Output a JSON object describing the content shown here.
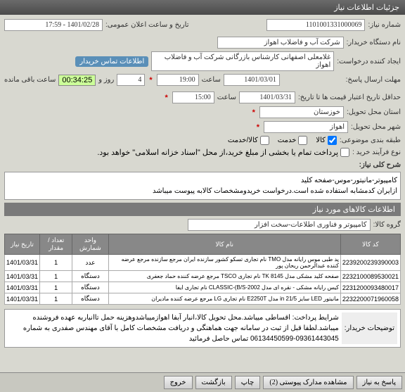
{
  "window": {
    "title": "جزئیات اطلاعات نیاز"
  },
  "header": {
    "num_label": "شماره نیاز:",
    "num_value": "1101001331000069",
    "pub_label": "تاریخ و ساعت اعلان عمومی:",
    "pub_value": "1401/02/28 - 17:59",
    "buyer_label": "نام دستگاه خریدار:",
    "buyer_value": "شرکت آب و فاضلاب اهواز",
    "req_label": "ایجاد کننده درخواست:",
    "req_value": "غلامعلی اصفهانی کارشناس بازرگانی شرکت آب و فاضلاب اهواز",
    "contact_badge": "اطلاعات تماس خریدار",
    "deadline_label": "حداقل تاریخ:",
    "date1": "1401/03/01",
    "time_lbl": "ساعت",
    "time1": "19:00",
    "day_lbl": "روز و",
    "days": "4",
    "remain": "00:34:25",
    "remain_lbl": "ساعت باقی مانده",
    "deadline2_label": "مهلت ارسال پاسخ:",
    "validity_label": "حداقل تاریخ اعتبار قیمت ها تا تاریخ:",
    "date2": "1401/03/31",
    "time2": "15:00",
    "province_label": "استان محل تحویل:",
    "province": "خوزستان",
    "city_label": "شهر محل تحویل:",
    "city": "اهواز",
    "class_label": "طبقه بندی موضوعی:",
    "c1": "کالا",
    "c2": "خدمت",
    "c3": "کالا/خدمت",
    "buy_label": "نوع فرآیند خرید :",
    "buy_note": "پرداخت تمام یا بخشی از مبلغ خرید،از محل \"اسناد خزانه اسلامی\" خواهد بود."
  },
  "desc": {
    "section": "شرح کلی نیاز:",
    "text": "کامپیوتر-مانیتور-موس-صفحه کلید\nازایران کدمشابه استفاده شده است.درخواست خریدومشخصات کالابه پیوست میباشد"
  },
  "items_section": "اطلاعات کالاهای مورد نیاز",
  "group_label": "گروه کالا:",
  "group_value": "کامپیوتر و فناوری اطلاعات-سخت افزار",
  "cols": {
    "code": "کد کالا",
    "name": "نام کالا",
    "unit": "واحد شمارش",
    "qty": "تعداد / مقدار",
    "date": "تاریخ نیاز"
  },
  "rows": [
    {
      "code": "2239200239390003",
      "name": "پد طبی موس رایانه مدل TMO نام تجاری تسکو کشور سازنده ایران مرجع سازنده مرجع عرضه کننده عبدالرحمن ریحان پور",
      "unit": "عدد",
      "qty": "1",
      "date": "1401/03/31"
    },
    {
      "code": "2232100089530021",
      "name": "صفحه کلید مشکی مدل TK 8145 نام تجاری TSCO مرجع عرضه کننده حماد جعفری",
      "unit": "دستگاه",
      "qty": "1",
      "date": "1401/03/31"
    },
    {
      "code": "2231200093480017",
      "name": "کیس رایانه مشکی - نقره ای مدل CLASSIC-(B/S-2002 نام تجاری ایفا",
      "unit": "دستگاه",
      "qty": "1",
      "date": "1401/03/31"
    },
    {
      "code": "2232200071960058",
      "name": "مانیتور LED سایز in 21/5 مدل E2250T نام تجاری LG مرجع عرضه کننده مادیران",
      "unit": "دستگاه",
      "qty": "1",
      "date": "1401/03/31"
    }
  ],
  "note": {
    "label": "توضیحات خریدار:",
    "text": "شرایط پرداخت: اقساطی میباشد.محل تحویل کالا،انبار آبفا اهوازمیباشدوهزینه حمل تاانباربه عهده فروشنده میباشد.لطفا قبل از ثبت در سامانه جهت هماهنگی و دریافت مشخصات کامل با آقای مهندس صفدری به شماره 09361443045-06134450599 تماس حاصل فرمائید"
  },
  "buttons": {
    "reply": "پاسخ به نیاز",
    "attach": "مشاهده مدارک پیوستی (2)",
    "print": "چاپ",
    "back": "بازگشت",
    "exit": "خروج"
  }
}
